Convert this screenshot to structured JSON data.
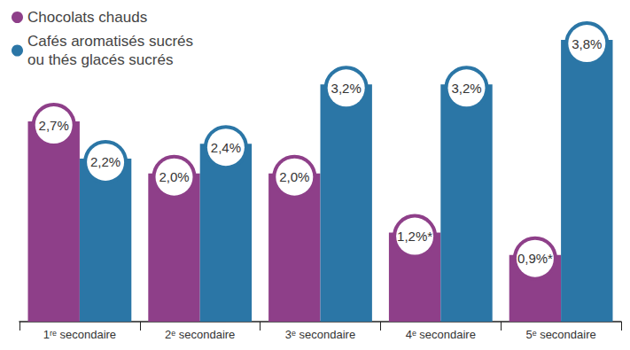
{
  "chart_data": {
    "type": "bar",
    "categories": [
      "1ʳᵉ secondaire",
      "2ᵉ secondaire",
      "3ᵉ secondaire",
      "4ᵉ secondaire",
      "5ᵉ secondaire"
    ],
    "series": [
      {
        "name": "Chocolats chauds",
        "color": "#8e3f89",
        "values": [
          2.7,
          2.0,
          2.0,
          1.2,
          0.9
        ],
        "value_labels": [
          "2,7%",
          "2,0%",
          "2,0%",
          "1,2%*",
          "0,9%*"
        ]
      },
      {
        "name": "Cafés aromatisés sucrés\nou thés glacés sucrés",
        "color": "#2b76a6",
        "values": [
          2.2,
          2.4,
          3.2,
          3.2,
          3.8
        ],
        "value_labels": [
          "2,2%",
          "2,4%",
          "3,2%",
          "3,2%",
          "3,8%"
        ]
      }
    ],
    "ylim": [
      0,
      4.1
    ],
    "grid": false,
    "legend": "top-left",
    "data_labels": true,
    "tick_labels": "x"
  }
}
